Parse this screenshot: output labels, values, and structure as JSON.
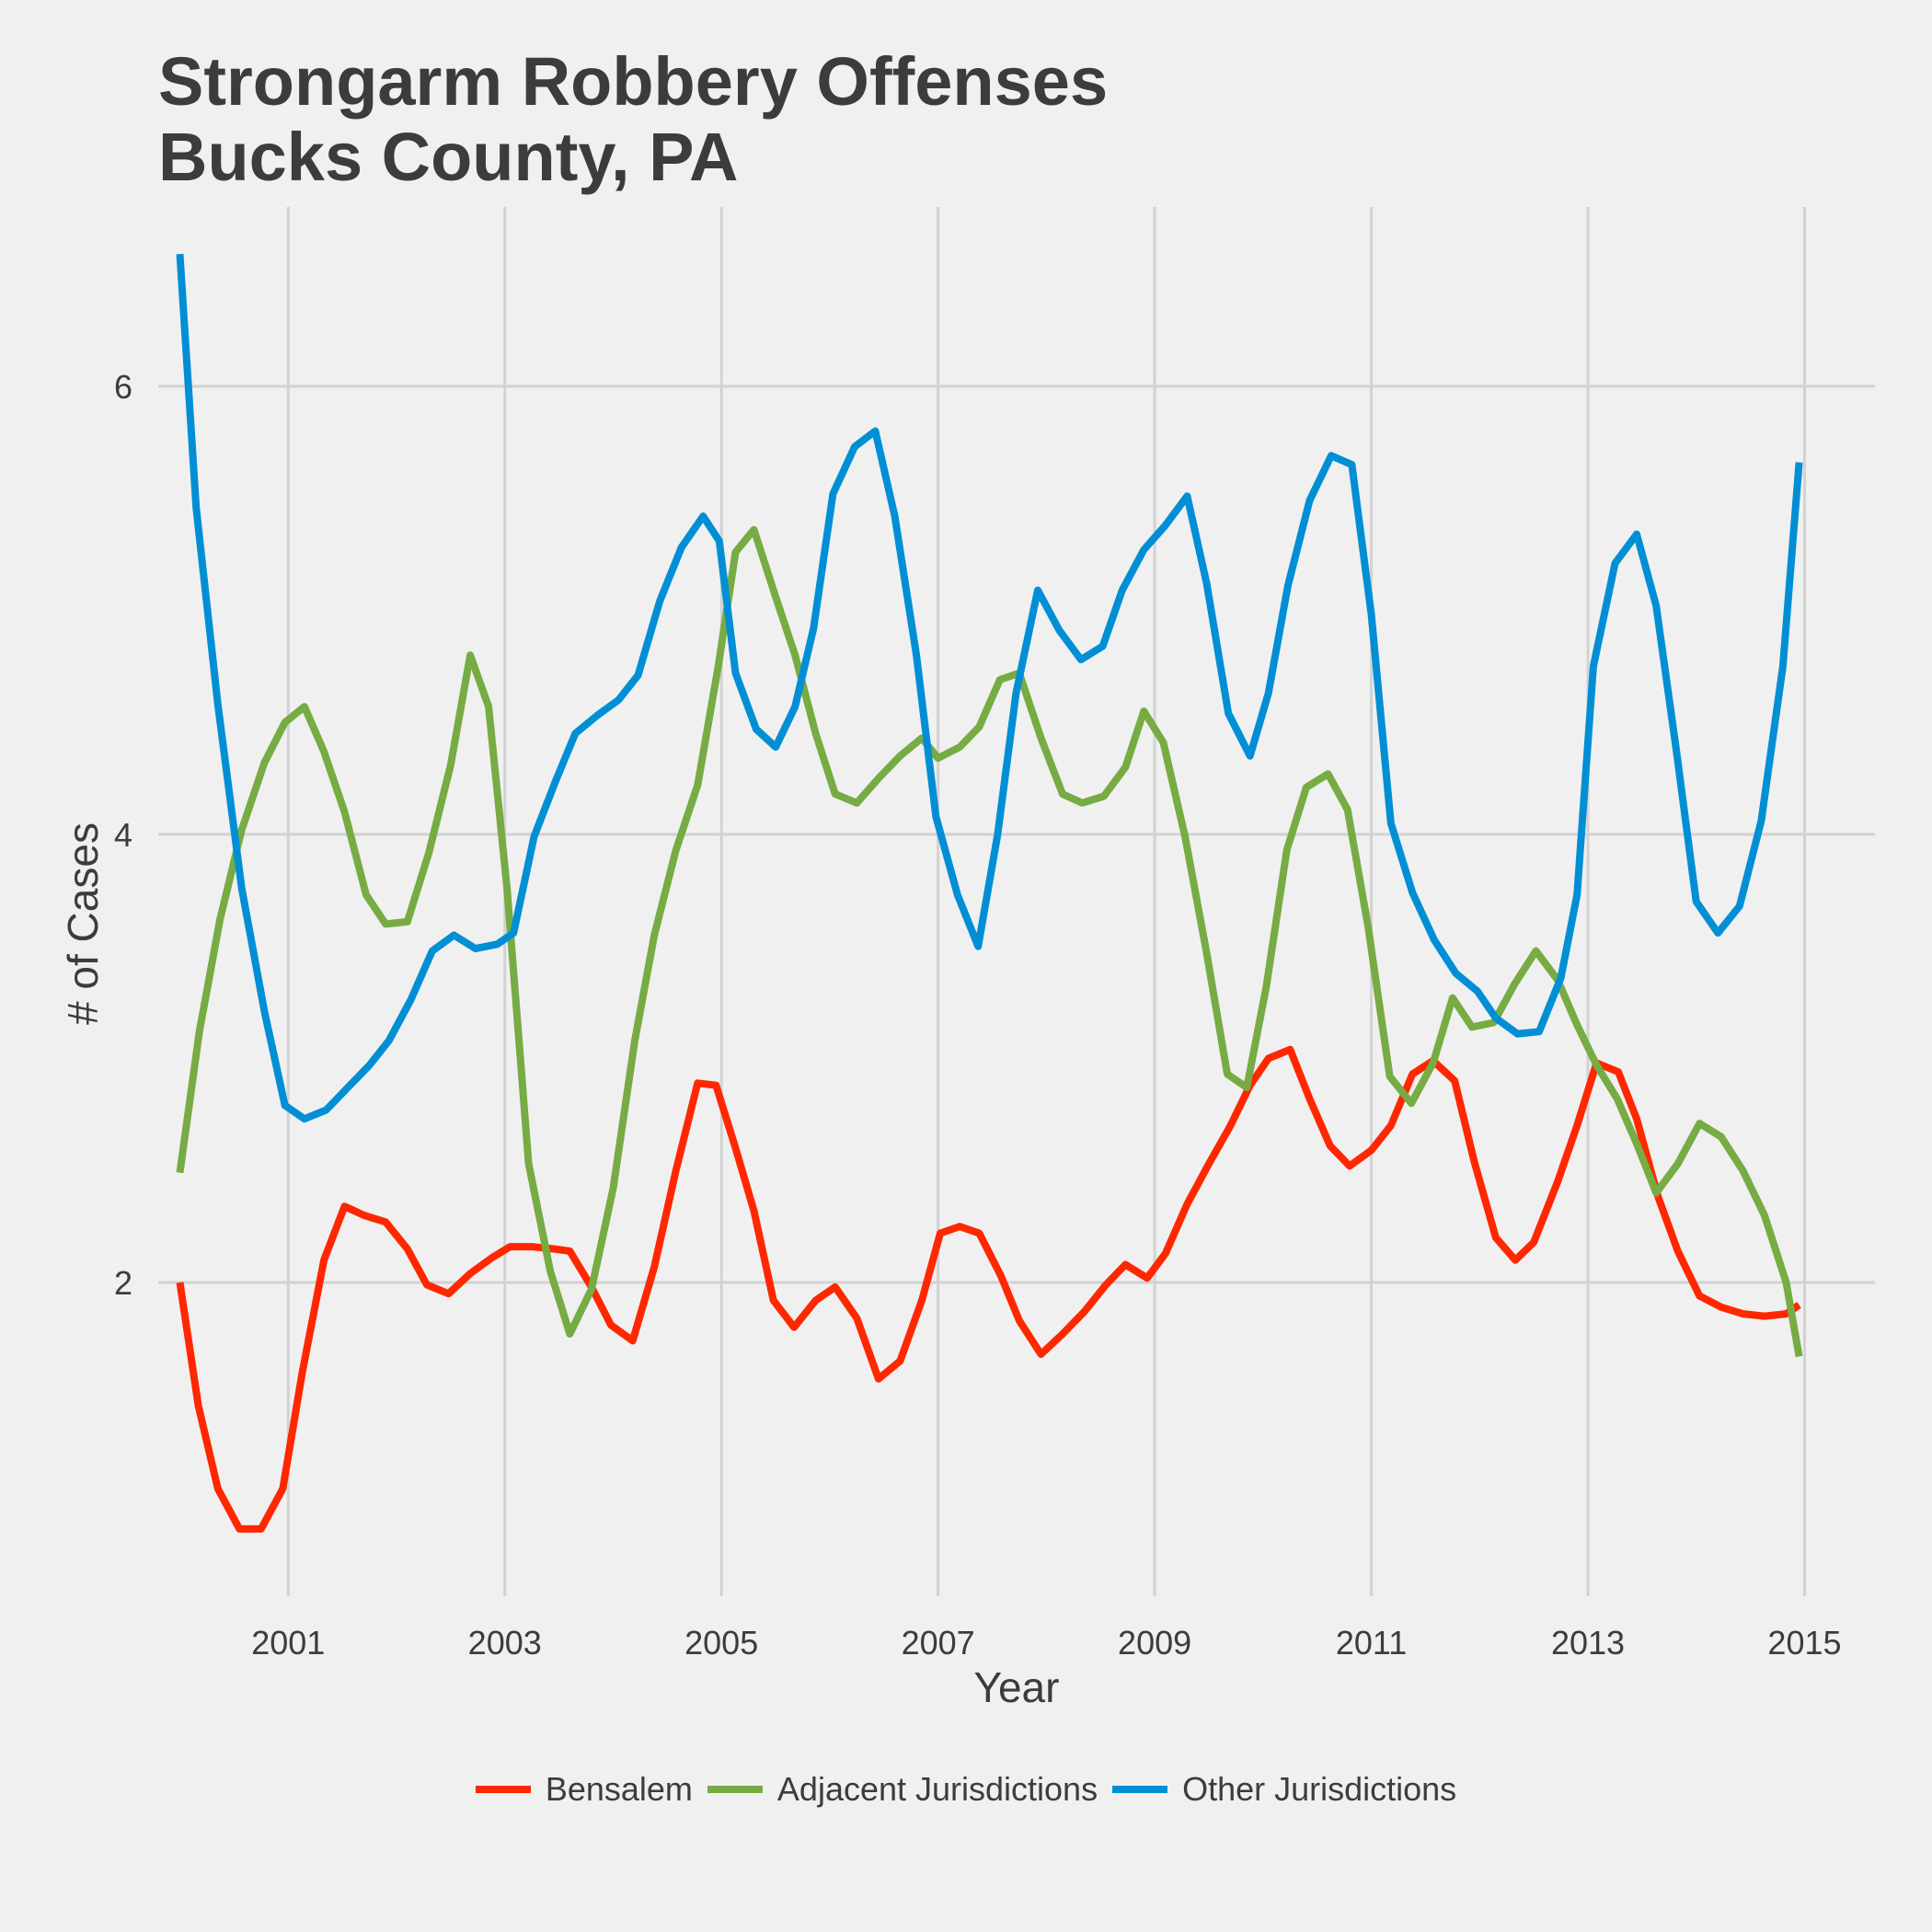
{
  "chart_data": {
    "type": "line",
    "title": [
      "Strongarm Robbery Offenses",
      "Bucks County, PA"
    ],
    "xlabel": "Year",
    "ylabel": "# of Cases",
    "xlim": [
      1999.8,
      2015.65
    ],
    "ylim": [
      0.6,
      6.8
    ],
    "x_ticks": [
      2001,
      2003,
      2005,
      2007,
      2009,
      2011,
      2013,
      2015
    ],
    "x_tick_labels": [
      "2001",
      "2003",
      "2005",
      "2007",
      "2009",
      "2011",
      "2013",
      "2015"
    ],
    "y_ticks": [
      2,
      4,
      6
    ],
    "y_tick_labels": [
      "2",
      "4",
      "6"
    ],
    "grid": true,
    "legend_position": "bottom",
    "series": [
      {
        "name": "Bensalem",
        "color": "#ff2700",
        "points": [
          [
            2000.0,
            2.0
          ],
          [
            2000.17,
            1.45
          ],
          [
            2000.35,
            1.08
          ],
          [
            2000.55,
            0.9
          ],
          [
            2000.75,
            0.9
          ],
          [
            2000.95,
            1.08
          ],
          [
            2001.13,
            1.6
          ],
          [
            2001.33,
            2.1
          ],
          [
            2001.52,
            2.34
          ],
          [
            2001.7,
            2.3
          ],
          [
            2001.9,
            2.27
          ],
          [
            2002.1,
            2.15
          ],
          [
            2002.28,
            1.99
          ],
          [
            2002.48,
            1.95
          ],
          [
            2002.68,
            2.04
          ],
          [
            2002.88,
            2.11
          ],
          [
            2003.05,
            2.16
          ],
          [
            2003.25,
            2.16
          ],
          [
            2003.45,
            2.15
          ],
          [
            2003.6,
            2.14
          ],
          [
            2003.8,
            1.98
          ],
          [
            2003.98,
            1.81
          ],
          [
            2004.18,
            1.74
          ],
          [
            2004.38,
            2.07
          ],
          [
            2004.58,
            2.5
          ],
          [
            2004.78,
            2.89
          ],
          [
            2004.95,
            2.88
          ],
          [
            2005.13,
            2.6
          ],
          [
            2005.3,
            2.32
          ],
          [
            2005.48,
            1.92
          ],
          [
            2005.67,
            1.8
          ],
          [
            2005.87,
            1.92
          ],
          [
            2006.05,
            1.98
          ],
          [
            2006.25,
            1.84
          ],
          [
            2006.45,
            1.57
          ],
          [
            2006.65,
            1.65
          ],
          [
            2006.85,
            1.92
          ],
          [
            2007.02,
            2.22
          ],
          [
            2007.2,
            2.25
          ],
          [
            2007.38,
            2.22
          ],
          [
            2007.58,
            2.03
          ],
          [
            2007.75,
            1.83
          ],
          [
            2007.95,
            1.68
          ],
          [
            2008.15,
            1.77
          ],
          [
            2008.35,
            1.87
          ],
          [
            2008.55,
            1.99
          ],
          [
            2008.73,
            2.08
          ],
          [
            2008.93,
            2.02
          ],
          [
            2009.1,
            2.13
          ],
          [
            2009.3,
            2.35
          ],
          [
            2009.5,
            2.53
          ],
          [
            2009.7,
            2.7
          ],
          [
            2009.88,
            2.88
          ],
          [
            2010.05,
            3.0
          ],
          [
            2010.25,
            3.04
          ],
          [
            2010.43,
            2.82
          ],
          [
            2010.62,
            2.61
          ],
          [
            2010.8,
            2.52
          ],
          [
            2011.0,
            2.59
          ],
          [
            2011.18,
            2.7
          ],
          [
            2011.38,
            2.93
          ],
          [
            2011.57,
            2.99
          ],
          [
            2011.77,
            2.9
          ],
          [
            2011.95,
            2.54
          ],
          [
            2012.15,
            2.2
          ],
          [
            2012.33,
            2.1
          ],
          [
            2012.5,
            2.18
          ],
          [
            2012.72,
            2.45
          ],
          [
            2012.9,
            2.7
          ],
          [
            2013.08,
            2.98
          ],
          [
            2013.28,
            2.94
          ],
          [
            2013.45,
            2.73
          ],
          [
            2013.65,
            2.38
          ],
          [
            2013.83,
            2.14
          ],
          [
            2014.03,
            1.94
          ],
          [
            2014.23,
            1.89
          ],
          [
            2014.43,
            1.86
          ],
          [
            2014.63,
            1.85
          ],
          [
            2014.83,
            1.86
          ],
          [
            2014.95,
            1.9
          ]
        ]
      },
      {
        "name": "Adjacent Jurisdictions",
        "color": "#77ab43",
        "points": [
          [
            2000.0,
            2.49
          ],
          [
            2000.18,
            3.12
          ],
          [
            2000.37,
            3.62
          ],
          [
            2000.57,
            4.02
          ],
          [
            2000.78,
            4.32
          ],
          [
            2000.97,
            4.5
          ],
          [
            2001.15,
            4.57
          ],
          [
            2001.33,
            4.37
          ],
          [
            2001.52,
            4.1
          ],
          [
            2001.72,
            3.73
          ],
          [
            2001.9,
            3.6
          ],
          [
            2002.1,
            3.61
          ],
          [
            2002.3,
            3.92
          ],
          [
            2002.5,
            4.31
          ],
          [
            2002.68,
            4.8
          ],
          [
            2002.85,
            4.57
          ],
          [
            2003.02,
            3.76
          ],
          [
            2003.22,
            2.53
          ],
          [
            2003.42,
            2.05
          ],
          [
            2003.6,
            1.77
          ],
          [
            2003.8,
            1.97
          ],
          [
            2004.0,
            2.42
          ],
          [
            2004.2,
            3.08
          ],
          [
            2004.38,
            3.55
          ],
          [
            2004.58,
            3.93
          ],
          [
            2004.78,
            4.22
          ],
          [
            2004.97,
            4.75
          ],
          [
            2005.13,
            5.26
          ],
          [
            2005.3,
            5.36
          ],
          [
            2005.5,
            5.06
          ],
          [
            2005.68,
            4.8
          ],
          [
            2005.87,
            4.45
          ],
          [
            2006.05,
            4.18
          ],
          [
            2006.25,
            4.14
          ],
          [
            2006.45,
            4.25
          ],
          [
            2006.65,
            4.35
          ],
          [
            2006.85,
            4.43
          ],
          [
            2007.0,
            4.34
          ],
          [
            2007.2,
            4.39
          ],
          [
            2007.38,
            4.48
          ],
          [
            2007.57,
            4.69
          ],
          [
            2007.75,
            4.72
          ],
          [
            2007.95,
            4.43
          ],
          [
            2008.15,
            4.18
          ],
          [
            2008.33,
            4.14
          ],
          [
            2008.53,
            4.17
          ],
          [
            2008.73,
            4.3
          ],
          [
            2008.9,
            4.55
          ],
          [
            2009.08,
            4.41
          ],
          [
            2009.28,
            3.99
          ],
          [
            2009.48,
            3.47
          ],
          [
            2009.67,
            2.93
          ],
          [
            2009.85,
            2.87
          ],
          [
            2010.03,
            3.32
          ],
          [
            2010.22,
            3.93
          ],
          [
            2010.4,
            4.21
          ],
          [
            2010.6,
            4.27
          ],
          [
            2010.78,
            4.11
          ],
          [
            2010.97,
            3.59
          ],
          [
            2011.17,
            2.92
          ],
          [
            2011.37,
            2.8
          ],
          [
            2011.57,
            2.98
          ],
          [
            2011.75,
            3.27
          ],
          [
            2011.93,
            3.14
          ],
          [
            2012.13,
            3.16
          ],
          [
            2012.32,
            3.33
          ],
          [
            2012.52,
            3.48
          ],
          [
            2012.72,
            3.35
          ],
          [
            2012.9,
            3.15
          ],
          [
            2013.08,
            2.97
          ],
          [
            2013.27,
            2.82
          ],
          [
            2013.45,
            2.62
          ],
          [
            2013.63,
            2.4
          ],
          [
            2013.83,
            2.53
          ],
          [
            2014.03,
            2.71
          ],
          [
            2014.23,
            2.65
          ],
          [
            2014.43,
            2.5
          ],
          [
            2014.63,
            2.3
          ],
          [
            2014.83,
            2.0
          ],
          [
            2014.95,
            1.67
          ]
        ]
      },
      {
        "name": "Other Jurisdictions",
        "color": "#008fd5",
        "points": [
          [
            2000.0,
            6.59
          ],
          [
            2000.15,
            5.46
          ],
          [
            2000.35,
            4.58
          ],
          [
            2000.57,
            3.76
          ],
          [
            2000.78,
            3.21
          ],
          [
            2000.97,
            2.79
          ],
          [
            2001.15,
            2.73
          ],
          [
            2001.35,
            2.77
          ],
          [
            2001.55,
            2.87
          ],
          [
            2001.75,
            2.97
          ],
          [
            2001.93,
            3.08
          ],
          [
            2002.13,
            3.26
          ],
          [
            2002.33,
            3.48
          ],
          [
            2002.53,
            3.55
          ],
          [
            2002.73,
            3.49
          ],
          [
            2002.93,
            3.51
          ],
          [
            2003.08,
            3.56
          ],
          [
            2003.27,
            3.99
          ],
          [
            2003.47,
            4.24
          ],
          [
            2003.65,
            4.45
          ],
          [
            2003.85,
            4.53
          ],
          [
            2004.05,
            4.6
          ],
          [
            2004.23,
            4.71
          ],
          [
            2004.43,
            5.04
          ],
          [
            2004.63,
            5.28
          ],
          [
            2004.83,
            5.42
          ],
          [
            2004.98,
            5.31
          ],
          [
            2005.13,
            4.72
          ],
          [
            2005.32,
            4.47
          ],
          [
            2005.5,
            4.39
          ],
          [
            2005.68,
            4.57
          ],
          [
            2005.85,
            4.92
          ],
          [
            2006.03,
            5.52
          ],
          [
            2006.23,
            5.73
          ],
          [
            2006.42,
            5.8
          ],
          [
            2006.6,
            5.42
          ],
          [
            2006.8,
            4.8
          ],
          [
            2006.98,
            4.08
          ],
          [
            2007.18,
            3.73
          ],
          [
            2007.37,
            3.5
          ],
          [
            2007.55,
            4.0
          ],
          [
            2007.72,
            4.63
          ],
          [
            2007.92,
            5.09
          ],
          [
            2008.12,
            4.91
          ],
          [
            2008.32,
            4.78
          ],
          [
            2008.52,
            4.84
          ],
          [
            2008.7,
            5.09
          ],
          [
            2008.9,
            5.27
          ],
          [
            2009.1,
            5.38
          ],
          [
            2009.3,
            5.51
          ],
          [
            2009.48,
            5.12
          ],
          [
            2009.68,
            4.54
          ],
          [
            2009.88,
            4.35
          ],
          [
            2010.05,
            4.63
          ],
          [
            2010.23,
            5.11
          ],
          [
            2010.43,
            5.49
          ],
          [
            2010.63,
            5.69
          ],
          [
            2010.82,
            5.65
          ],
          [
            2011.0,
            4.98
          ],
          [
            2011.18,
            4.05
          ],
          [
            2011.38,
            3.74
          ],
          [
            2011.58,
            3.53
          ],
          [
            2011.78,
            3.38
          ],
          [
            2011.98,
            3.3
          ],
          [
            2012.15,
            3.18
          ],
          [
            2012.35,
            3.11
          ],
          [
            2012.55,
            3.12
          ],
          [
            2012.75,
            3.36
          ],
          [
            2012.9,
            3.73
          ],
          [
            2013.05,
            4.75
          ],
          [
            2013.25,
            5.21
          ],
          [
            2013.45,
            5.34
          ],
          [
            2013.63,
            5.02
          ],
          [
            2013.82,
            4.36
          ],
          [
            2014.0,
            3.7
          ],
          [
            2014.2,
            3.56
          ],
          [
            2014.4,
            3.68
          ],
          [
            2014.6,
            4.06
          ],
          [
            2014.8,
            4.75
          ],
          [
            2014.95,
            5.66
          ]
        ]
      }
    ]
  }
}
